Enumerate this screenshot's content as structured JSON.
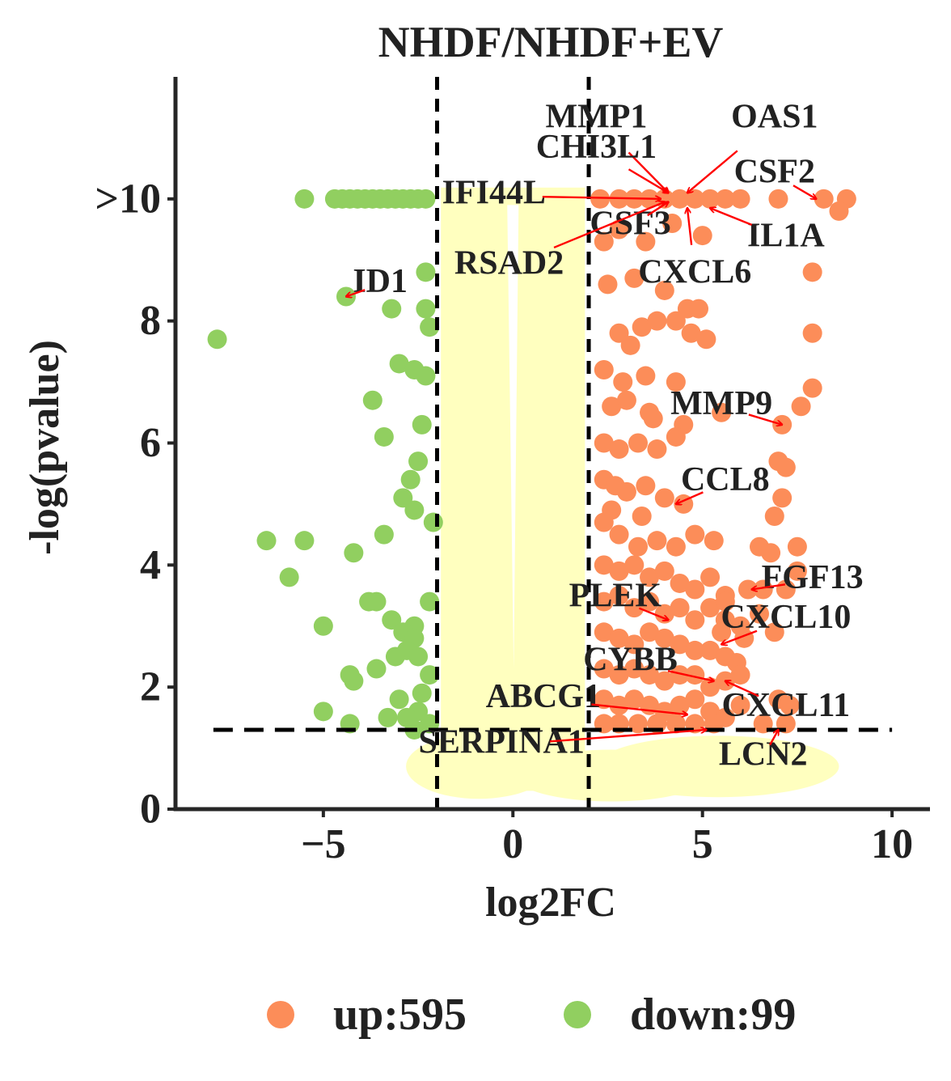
{
  "chart_data": {
    "type": "scatter",
    "title": "NHDF/NHDF+EV",
    "xlabel": "log2FC",
    "ylabel": "-log(pvalue)",
    "xlim": [
      -8.9,
      11.0
    ],
    "ylim": [
      0,
      12.0
    ],
    "x_ticks": [
      {
        "value": -5,
        "label": "−5"
      },
      {
        "value": 0,
        "label": "0"
      },
      {
        "value": 5,
        "label": "5"
      },
      {
        "value": 10,
        "label": "10"
      }
    ],
    "y_ticks": [
      {
        "value": 0,
        "label": "0"
      },
      {
        "value": 2,
        "label": "2"
      },
      {
        "value": 4,
        "label": "4"
      },
      {
        "value": 6,
        "label": "6"
      },
      {
        "value": 8,
        "label": "8"
      },
      {
        "value": 10,
        "label": ">10"
      }
    ],
    "thresholds": {
      "log2fc": [
        -2,
        2
      ],
      "pvalue_line": 1.3
    },
    "grid": false,
    "legend_position": "bottom",
    "colors": {
      "up": "#FC8D59",
      "down": "#91CF60",
      "ns": "#FFFFBF",
      "arrow": "#FF0000",
      "line": "#000000"
    },
    "ns_band": {
      "x": [
        -1.9,
        1.9
      ],
      "y": [
        0.3,
        10.0
      ]
    },
    "legend": [
      {
        "key": "up",
        "label": "up:595",
        "color": "#FC8D59"
      },
      {
        "key": "down",
        "label": "down:99",
        "color": "#91CF60"
      }
    ],
    "series": [
      {
        "name": "up:595",
        "key": "up",
        "points": [
          [
            2.3,
            10
          ],
          [
            2.8,
            10
          ],
          [
            3.2,
            10
          ],
          [
            3.6,
            10
          ],
          [
            4.0,
            10
          ],
          [
            4.4,
            10
          ],
          [
            4.8,
            10
          ],
          [
            5.2,
            10
          ],
          [
            5.6,
            10
          ],
          [
            6.0,
            10
          ],
          [
            7.0,
            10
          ],
          [
            8.2,
            10
          ],
          [
            8.8,
            10
          ],
          [
            8.6,
            9.8
          ],
          [
            2.4,
            9.3
          ],
          [
            2.8,
            9.5
          ],
          [
            3.5,
            9.3
          ],
          [
            4.2,
            9.6
          ],
          [
            5.0,
            9.4
          ],
          [
            7.9,
            8.8
          ],
          [
            2.5,
            8.6
          ],
          [
            3.2,
            8.7
          ],
          [
            4.0,
            8.5
          ],
          [
            4.6,
            8.2
          ],
          [
            4.9,
            8.2
          ],
          [
            3.4,
            7.9
          ],
          [
            3.8,
            8.0
          ],
          [
            4.3,
            8.0
          ],
          [
            4.7,
            7.8
          ],
          [
            5.1,
            7.7
          ],
          [
            2.8,
            7.8
          ],
          [
            3.1,
            7.6
          ],
          [
            7.9,
            7.8
          ],
          [
            2.4,
            7.2
          ],
          [
            2.9,
            7.0
          ],
          [
            3.5,
            7.1
          ],
          [
            4.3,
            7.0
          ],
          [
            2.6,
            6.6
          ],
          [
            3.0,
            6.7
          ],
          [
            3.6,
            6.5
          ],
          [
            4.5,
            6.3
          ],
          [
            5.5,
            6.5
          ],
          [
            7.1,
            6.3
          ],
          [
            7.9,
            6.9
          ],
          [
            7.6,
            6.6
          ],
          [
            3.7,
            6.4
          ],
          [
            2.4,
            6.0
          ],
          [
            2.8,
            5.9
          ],
          [
            3.3,
            6.0
          ],
          [
            3.8,
            5.9
          ],
          [
            4.3,
            6.1
          ],
          [
            7.0,
            5.7
          ],
          [
            7.2,
            5.6
          ],
          [
            2.4,
            5.4
          ],
          [
            2.7,
            5.3
          ],
          [
            3.0,
            5.2
          ],
          [
            3.5,
            5.3
          ],
          [
            4.0,
            5.1
          ],
          [
            2.6,
            4.9
          ],
          [
            3.4,
            4.8
          ],
          [
            4.5,
            5.0
          ],
          [
            7.1,
            5.1
          ],
          [
            2.4,
            4.7
          ],
          [
            2.8,
            4.5
          ],
          [
            3.3,
            4.3
          ],
          [
            3.8,
            4.4
          ],
          [
            4.3,
            4.3
          ],
          [
            4.8,
            4.5
          ],
          [
            5.3,
            4.4
          ],
          [
            6.5,
            4.3
          ],
          [
            6.8,
            4.2
          ],
          [
            7.5,
            4.3
          ],
          [
            6.9,
            4.8
          ],
          [
            2.4,
            4.0
          ],
          [
            2.8,
            3.9
          ],
          [
            3.2,
            4.0
          ],
          [
            3.6,
            3.8
          ],
          [
            4.0,
            3.9
          ],
          [
            4.4,
            3.7
          ],
          [
            4.8,
            3.6
          ],
          [
            5.2,
            3.8
          ],
          [
            5.6,
            3.5
          ],
          [
            6.2,
            3.6
          ],
          [
            6.6,
            3.6
          ],
          [
            7.2,
            3.6
          ],
          [
            7.5,
            3.9
          ],
          [
            2.4,
            3.4
          ],
          [
            2.8,
            3.5
          ],
          [
            3.2,
            3.3
          ],
          [
            3.6,
            3.4
          ],
          [
            4.0,
            3.2
          ],
          [
            4.4,
            3.3
          ],
          [
            4.8,
            3.1
          ],
          [
            5.2,
            3.3
          ],
          [
            5.6,
            3.1
          ],
          [
            6.0,
            3.0
          ],
          [
            6.5,
            3.2
          ],
          [
            5.6,
            3.4
          ],
          [
            6.9,
            2.9
          ],
          [
            2.4,
            2.9
          ],
          [
            2.8,
            2.8
          ],
          [
            3.2,
            2.7
          ],
          [
            3.6,
            2.9
          ],
          [
            4.0,
            2.8
          ],
          [
            4.4,
            2.7
          ],
          [
            4.8,
            2.6
          ],
          [
            5.2,
            2.6
          ],
          [
            5.6,
            2.5
          ],
          [
            5.9,
            2.4
          ],
          [
            6.1,
            2.8
          ],
          [
            5.5,
            2.9
          ],
          [
            2.4,
            2.3
          ],
          [
            2.8,
            2.2
          ],
          [
            3.2,
            2.3
          ],
          [
            3.6,
            2.2
          ],
          [
            4.0,
            2.1
          ],
          [
            4.4,
            2.2
          ],
          [
            4.8,
            2.2
          ],
          [
            5.2,
            2.0
          ],
          [
            5.6,
            2.1
          ],
          [
            6.0,
            2.2
          ],
          [
            2.4,
            1.8
          ],
          [
            2.8,
            1.7
          ],
          [
            3.2,
            1.8
          ],
          [
            3.6,
            1.7
          ],
          [
            4.0,
            1.6
          ],
          [
            4.4,
            1.7
          ],
          [
            4.8,
            1.8
          ],
          [
            5.2,
            1.6
          ],
          [
            5.6,
            1.5
          ],
          [
            6.0,
            1.7
          ],
          [
            7.0,
            1.8
          ],
          [
            7.3,
            1.7
          ],
          [
            2.4,
            1.4
          ],
          [
            2.8,
            1.4
          ],
          [
            3.3,
            1.4
          ],
          [
            3.8,
            1.4
          ],
          [
            4.3,
            1.4
          ],
          [
            4.8,
            1.4
          ],
          [
            5.3,
            1.4
          ],
          [
            6.6,
            1.4
          ],
          [
            7.2,
            1.4
          ]
        ]
      },
      {
        "name": "down:99",
        "key": "down",
        "points": [
          [
            -5.5,
            10
          ],
          [
            -4.7,
            10
          ],
          [
            -4.5,
            10
          ],
          [
            -4.3,
            10
          ],
          [
            -4.1,
            10
          ],
          [
            -3.9,
            10
          ],
          [
            -3.7,
            10
          ],
          [
            -3.5,
            10
          ],
          [
            -3.3,
            10
          ],
          [
            -3.1,
            10
          ],
          [
            -2.9,
            10
          ],
          [
            -2.7,
            10
          ],
          [
            -2.5,
            10
          ],
          [
            -2.3,
            10
          ],
          [
            -2.3,
            8.8
          ],
          [
            -4.4,
            8.4
          ],
          [
            -3.2,
            8.2
          ],
          [
            -2.3,
            8.2
          ],
          [
            -2.2,
            7.9
          ],
          [
            -7.8,
            7.7
          ],
          [
            -3.0,
            7.3
          ],
          [
            -2.6,
            7.2
          ],
          [
            -2.3,
            7.1
          ],
          [
            -3.7,
            6.7
          ],
          [
            -2.4,
            6.3
          ],
          [
            -3.4,
            6.1
          ],
          [
            -2.5,
            5.7
          ],
          [
            -2.7,
            5.4
          ],
          [
            -2.9,
            5.1
          ],
          [
            -2.6,
            4.9
          ],
          [
            -2.1,
            4.7
          ],
          [
            -3.4,
            4.5
          ],
          [
            -6.5,
            4.4
          ],
          [
            -5.5,
            4.4
          ],
          [
            -4.2,
            4.2
          ],
          [
            -5.9,
            3.8
          ],
          [
            -3.8,
            3.4
          ],
          [
            -3.6,
            3.4
          ],
          [
            -2.2,
            3.4
          ],
          [
            -3.2,
            3.1
          ],
          [
            -5.0,
            3.0
          ],
          [
            -2.6,
            3.0
          ],
          [
            -2.9,
            2.9
          ],
          [
            -2.6,
            2.8
          ],
          [
            -2.8,
            2.6
          ],
          [
            -3.1,
            2.5
          ],
          [
            -2.5,
            2.5
          ],
          [
            -3.6,
            2.3
          ],
          [
            -4.3,
            2.2
          ],
          [
            -2.2,
            2.2
          ],
          [
            -4.2,
            2.1
          ],
          [
            -2.4,
            1.9
          ],
          [
            -3.0,
            1.8
          ],
          [
            -5.0,
            1.6
          ],
          [
            -2.5,
            1.6
          ],
          [
            -3.3,
            1.5
          ],
          [
            -2.8,
            1.5
          ],
          [
            -4.3,
            1.4
          ],
          [
            -2.2,
            1.4
          ],
          [
            -2.6,
            1.3
          ]
        ]
      }
    ],
    "annotations": [
      {
        "label": "MMP1",
        "label_at": [
          2.2,
          11.3
        ],
        "point": [
          4.1,
          10.1
        ]
      },
      {
        "label": "OAS1",
        "label_at": [
          6.9,
          11.3
        ],
        "point": [
          4.6,
          10.1
        ]
      },
      {
        "label": "CHI3L1",
        "label_at": [
          2.2,
          10.8
        ],
        "point": [
          4.1,
          10.1
        ]
      },
      {
        "label": "CSF2",
        "label_at": [
          6.9,
          10.4
        ],
        "point": [
          8.0,
          10.0
        ]
      },
      {
        "label": "IFI44L",
        "label_at": [
          -0.5,
          10.05
        ],
        "point": [
          3.9,
          10.0
        ]
      },
      {
        "label": "IL1A",
        "label_at": [
          7.2,
          9.35
        ],
        "point": [
          5.2,
          9.85
        ]
      },
      {
        "label": "CSF3",
        "label_at": [
          3.1,
          9.55
        ],
        "point": [
          4.1,
          9.95
        ]
      },
      {
        "label": "RSAD2",
        "label_at": [
          -0.1,
          8.9
        ],
        "point": [
          4.0,
          9.95
        ]
      },
      {
        "label": "CXCL6",
        "label_at": [
          4.8,
          8.75
        ],
        "point": [
          4.6,
          9.85
        ]
      },
      {
        "label": "ID1",
        "label_at": [
          -3.5,
          8.6
        ],
        "point": [
          -4.4,
          8.4
        ]
      },
      {
        "label": "MMP9",
        "label_at": [
          5.5,
          6.6
        ],
        "point": [
          7.1,
          6.3
        ]
      },
      {
        "label": "CCL8",
        "label_at": [
          5.6,
          5.35
        ],
        "point": [
          4.3,
          5.0
        ]
      },
      {
        "label": "FGF13",
        "label_at": [
          7.9,
          3.75
        ],
        "point": [
          6.3,
          3.6
        ]
      },
      {
        "label": "PLEK",
        "label_at": [
          2.7,
          3.45
        ],
        "point": [
          4.1,
          3.1
        ]
      },
      {
        "label": "CXCL10",
        "label_at": [
          7.2,
          3.1
        ],
        "point": [
          5.5,
          2.7
        ]
      },
      {
        "label": "CYBB",
        "label_at": [
          3.1,
          2.4
        ],
        "point": [
          5.3,
          2.1
        ]
      },
      {
        "label": "ABCG1",
        "label_at": [
          0.8,
          1.8
        ],
        "point": [
          4.6,
          1.55
        ]
      },
      {
        "label": "CXCL11",
        "label_at": [
          7.2,
          1.65
        ],
        "point": [
          5.6,
          2.1
        ]
      },
      {
        "label": "SERPINA1",
        "label_at": [
          -0.3,
          1.05
        ],
        "point": [
          5.1,
          1.3
        ]
      },
      {
        "label": "LCN2",
        "label_at": [
          6.6,
          0.85
        ],
        "point": [
          7.0,
          1.3
        ]
      }
    ]
  }
}
